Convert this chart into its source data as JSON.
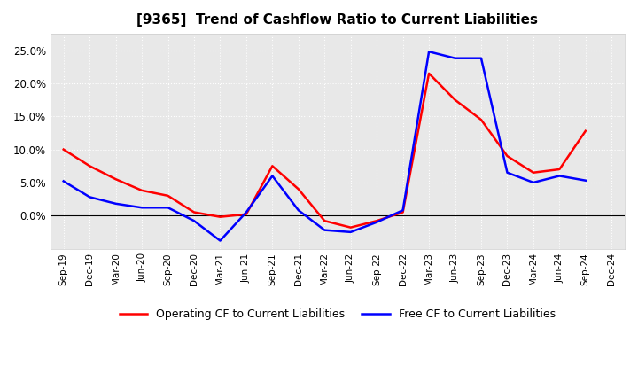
{
  "title": "[9365]  Trend of Cashflow Ratio to Current Liabilities",
  "x_labels": [
    "Sep-19",
    "Dec-19",
    "Mar-20",
    "Jun-20",
    "Sep-20",
    "Dec-20",
    "Mar-21",
    "Jun-21",
    "Sep-21",
    "Dec-21",
    "Mar-22",
    "Jun-22",
    "Sep-22",
    "Dec-22",
    "Mar-23",
    "Jun-23",
    "Sep-23",
    "Dec-23",
    "Mar-24",
    "Jun-24",
    "Sep-24",
    "Dec-24"
  ],
  "operating_cf": [
    0.1,
    0.075,
    0.055,
    0.038,
    0.03,
    0.005,
    -0.002,
    0.002,
    0.075,
    0.04,
    -0.008,
    -0.018,
    -0.008,
    0.005,
    0.215,
    0.175,
    0.145,
    0.09,
    0.065,
    0.07,
    0.128,
    null
  ],
  "free_cf": [
    0.052,
    0.028,
    0.018,
    0.012,
    0.012,
    -0.008,
    -0.038,
    0.005,
    0.06,
    0.008,
    -0.022,
    -0.025,
    -0.01,
    0.008,
    0.248,
    0.238,
    0.238,
    0.065,
    0.05,
    0.06,
    0.053,
    null
  ],
  "operating_color": "#ff0000",
  "free_color": "#0000ff",
  "background_color": "#ffffff",
  "plot_background": "#e8e8e8",
  "grid_color": "#ffffff",
  "ylim": [
    -0.05,
    0.275
  ],
  "yticks": [
    0.0,
    0.05,
    0.1,
    0.15,
    0.2,
    0.25
  ],
  "title_fontsize": 11,
  "legend_labels": [
    "Operating CF to Current Liabilities",
    "Free CF to Current Liabilities"
  ]
}
